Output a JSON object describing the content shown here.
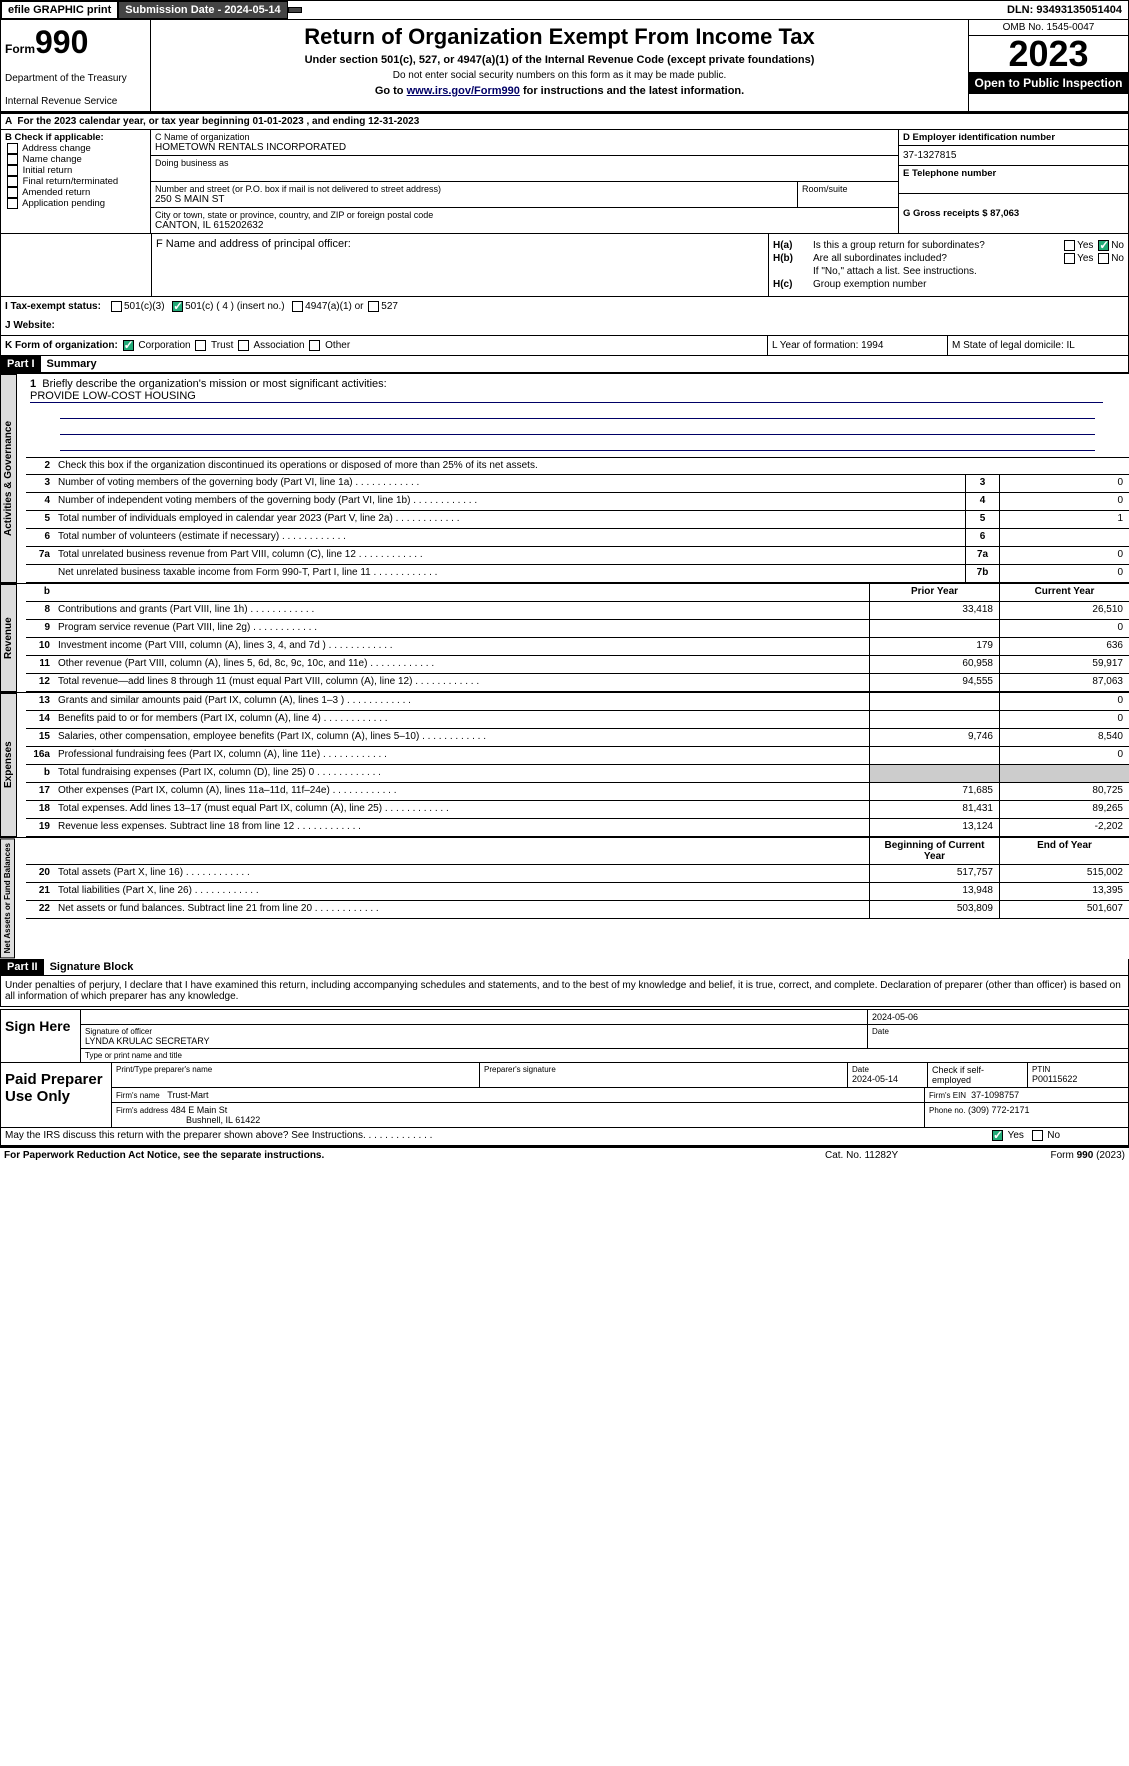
{
  "top": {
    "efile": "efile GRAPHIC print",
    "sub_label": "Submission Date - 2024-05-14",
    "dln": "DLN: 93493135051404"
  },
  "header": {
    "form_small": "Form",
    "form_big": "990",
    "title": "Return of Organization Exempt From Income Tax",
    "subtitle": "Under section 501(c), 527, or 4947(a)(1) of the Internal Revenue Code (except private foundations)",
    "note": "Do not enter social security numbers on this form as it may be made public.",
    "goto_pre": "Go to ",
    "goto_link": "www.irs.gov/Form990",
    "goto_post": " for instructions and the latest information.",
    "dept": "Department of the Treasury",
    "irs": "Internal Revenue Service",
    "omb": "OMB No. 1545-0047",
    "year": "2023",
    "inspect": "Open to Public Inspection"
  },
  "line_a": "For the 2023 calendar year, or tax year beginning 01-01-2023   , and ending 12-31-2023",
  "b": {
    "hdr": "B Check if applicable:",
    "opts": [
      "Address change",
      "Name change",
      "Initial return",
      "Final return/terminated",
      "Amended return",
      "Application pending"
    ]
  },
  "c": {
    "name_lbl": "C Name of organization",
    "name": "HOMETOWN RENTALS INCORPORATED",
    "dba_lbl": "Doing business as",
    "addr_lbl": "Number and street (or P.O. box if mail is not delivered to street address)",
    "addr": "250 S MAIN ST",
    "room_lbl": "Room/suite",
    "city_lbl": "City or town, state or province, country, and ZIP or foreign postal code",
    "city": "CANTON, IL  615202632"
  },
  "de": {
    "d_lbl": "D Employer identification number",
    "d_val": "37-1327815",
    "e_lbl": "E Telephone number",
    "g_lbl": "G Gross receipts $ 87,063"
  },
  "f": {
    "lbl": "F  Name and address of principal officer:"
  },
  "h": {
    "a_lbl": "H(a)",
    "a_txt": "Is this a group return for subordinates?",
    "b_lbl": "H(b)",
    "b_txt": "Are all subordinates included?",
    "b_note": "If \"No,\" attach a list. See instructions.",
    "c_lbl": "H(c)",
    "c_txt": "Group exemption number",
    "yes": "Yes",
    "no": "No"
  },
  "i": {
    "lbl": "I   Tax-exempt status:",
    "o1": "501(c)(3)",
    "o2": "501(c) ( 4 ) (insert no.)",
    "o3": "4947(a)(1) or",
    "o4": "527"
  },
  "j": {
    "lbl": "J   Website:"
  },
  "k": {
    "lbl": "K Form of organization:",
    "o1": "Corporation",
    "o2": "Trust",
    "o3": "Association",
    "o4": "Other",
    "l": "L Year of formation: 1994",
    "m": "M State of legal domicile: IL"
  },
  "part1": {
    "hdr": "Part I",
    "title": "Summary",
    "l1": "Briefly describe the organization's mission or most significant activities:",
    "mission": "PROVIDE LOW-COST HOUSING",
    "l2": "Check this box        if the organization discontinued its operations or disposed of more than 25% of its net assets.",
    "tabs": {
      "gov": "Activities & Governance",
      "rev": "Revenue",
      "exp": "Expenses",
      "net": "Net Assets or Fund Balances"
    },
    "lines_gov": [
      {
        "n": "3",
        "t": "Number of voting members of the governing body (Part VI, line 1a)",
        "c": "3",
        "v": "0"
      },
      {
        "n": "4",
        "t": "Number of independent voting members of the governing body (Part VI, line 1b)",
        "c": "4",
        "v": "0"
      },
      {
        "n": "5",
        "t": "Total number of individuals employed in calendar year 2023 (Part V, line 2a)",
        "c": "5",
        "v": "1"
      },
      {
        "n": "6",
        "t": "Total number of volunteers (estimate if necessary)",
        "c": "6",
        "v": ""
      },
      {
        "n": "7a",
        "t": "Total unrelated business revenue from Part VIII, column (C), line 12",
        "c": "7a",
        "v": "0"
      },
      {
        "n": "",
        "t": "Net unrelated business taxable income from Form 990-T, Part I, line 11",
        "c": "7b",
        "v": "0"
      }
    ],
    "hdr_py": "Prior Year",
    "hdr_cy": "Current Year",
    "lines_rev": [
      {
        "n": "8",
        "t": "Contributions and grants (Part VIII, line 1h)",
        "py": "33,418",
        "cy": "26,510"
      },
      {
        "n": "9",
        "t": "Program service revenue (Part VIII, line 2g)",
        "py": "",
        "cy": "0"
      },
      {
        "n": "10",
        "t": "Investment income (Part VIII, column (A), lines 3, 4, and 7d )",
        "py": "179",
        "cy": "636"
      },
      {
        "n": "11",
        "t": "Other revenue (Part VIII, column (A), lines 5, 6d, 8c, 9c, 10c, and 11e)",
        "py": "60,958",
        "cy": "59,917"
      },
      {
        "n": "12",
        "t": "Total revenue—add lines 8 through 11 (must equal Part VIII, column (A), line 12)",
        "py": "94,555",
        "cy": "87,063"
      }
    ],
    "lines_exp": [
      {
        "n": "13",
        "t": "Grants and similar amounts paid (Part IX, column (A), lines 1–3 )",
        "py": "",
        "cy": "0"
      },
      {
        "n": "14",
        "t": "Benefits paid to or for members (Part IX, column (A), line 4)",
        "py": "",
        "cy": "0"
      },
      {
        "n": "15",
        "t": "Salaries, other compensation, employee benefits (Part IX, column (A), lines 5–10)",
        "py": "9,746",
        "cy": "8,540"
      },
      {
        "n": "16a",
        "t": "Professional fundraising fees (Part IX, column (A), line 11e)",
        "py": "",
        "cy": "0"
      },
      {
        "n": "b",
        "t": "Total fundraising expenses (Part IX, column (D), line 25) 0",
        "py": "grey",
        "cy": "grey"
      },
      {
        "n": "17",
        "t": "Other expenses (Part IX, column (A), lines 11a–11d, 11f–24e)",
        "py": "71,685",
        "cy": "80,725"
      },
      {
        "n": "18",
        "t": "Total expenses. Add lines 13–17 (must equal Part IX, column (A), line 25)",
        "py": "81,431",
        "cy": "89,265"
      },
      {
        "n": "19",
        "t": "Revenue less expenses. Subtract line 18 from line 12",
        "py": "13,124",
        "cy": "-2,202"
      }
    ],
    "hdr_by": "Beginning of Current Year",
    "hdr_ey": "End of Year",
    "lines_net": [
      {
        "n": "20",
        "t": "Total assets (Part X, line 16)",
        "py": "517,757",
        "cy": "515,002"
      },
      {
        "n": "21",
        "t": "Total liabilities (Part X, line 26)",
        "py": "13,948",
        "cy": "13,395"
      },
      {
        "n": "22",
        "t": "Net assets or fund balances. Subtract line 21 from line 20",
        "py": "503,809",
        "cy": "501,607"
      }
    ]
  },
  "part2": {
    "hdr": "Part II",
    "title": "Signature Block",
    "decl": "Under penalties of perjury, I declare that I have examined this return, including accompanying schedules and statements, and to the best of my knowledge and belief, it is true, correct, and complete. Declaration of preparer (other than officer) is based on all information of which preparer has any knowledge.",
    "sign_here": "Sign Here",
    "sig_lbl": "Signature of officer",
    "officer": "LYNDA KRULAC  SECRETARY",
    "type_lbl": "Type or print name and title",
    "date_lbl": "Date",
    "date": "2024-05-06",
    "paid": "Paid Preparer Use Only",
    "prep_name_lbl": "Print/Type preparer's name",
    "prep_sig_lbl": "Preparer's signature",
    "prep_date_lbl": "Date",
    "prep_date": "2024-05-14",
    "check_lbl": "Check        if self-employed",
    "ptin_lbl": "PTIN",
    "ptin": "P00115622",
    "firm_name_lbl": "Firm's name",
    "firm_name": "Trust-Mart",
    "firm_ein_lbl": "Firm's EIN",
    "firm_ein": "37-1098757",
    "firm_addr_lbl": "Firm's address",
    "firm_addr1": "484 E Main St",
    "firm_addr2": "Bushnell, IL  61422",
    "phone_lbl": "Phone no.",
    "phone": "(309) 772-2171",
    "discuss": "May the IRS discuss this return with the preparer shown above? See Instructions."
  },
  "footer": {
    "l": "For Paperwork Reduction Act Notice, see the separate instructions.",
    "m": "Cat. No. 11282Y",
    "r_pre": "Form ",
    "r_form": "990",
    "r_post": " (2023)"
  }
}
